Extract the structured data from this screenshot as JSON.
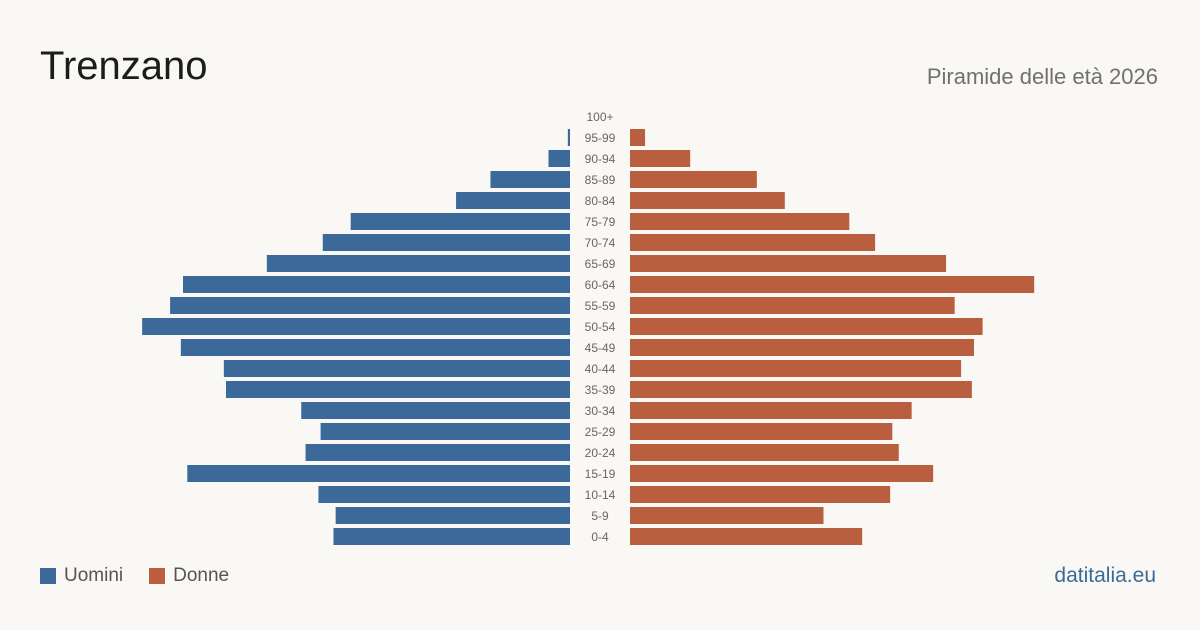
{
  "header": {
    "title": "Trenzano",
    "subtitle": "Piramide delle età 2026"
  },
  "colors": {
    "male": "#3b6a9a",
    "female": "#b95e3f",
    "background": "#faf8f4",
    "label": "#666666"
  },
  "legend": {
    "male_label": "Uomini",
    "female_label": "Donne"
  },
  "brand": "datitalia.eu",
  "chart_data": {
    "type": "bar",
    "orientation": "horizontal-pyramid",
    "categories": [
      "100+",
      "95-99",
      "90-94",
      "85-89",
      "80-84",
      "75-79",
      "70-74",
      "65-69",
      "60-64",
      "55-59",
      "50-54",
      "45-49",
      "40-44",
      "35-39",
      "30-34",
      "25-29",
      "20-24",
      "15-19",
      "10-14",
      "5-9",
      "0-4"
    ],
    "series": [
      {
        "name": "Uomini",
        "values": [
          0,
          1,
          10,
          37,
          53,
          102,
          115,
          141,
          180,
          186,
          199,
          181,
          161,
          160,
          125,
          116,
          123,
          178,
          117,
          109,
          110
        ]
      },
      {
        "name": "Donne",
        "values": [
          0,
          7,
          28,
          59,
          72,
          102,
          114,
          147,
          188,
          151,
          164,
          160,
          154,
          159,
          131,
          122,
          125,
          141,
          121,
          90,
          108
        ]
      }
    ],
    "title": "Trenzano",
    "subtitle": "Piramide delle età 2026",
    "xlabel": "",
    "ylabel": "",
    "legend_position": "bottom-left",
    "grid": false
  }
}
